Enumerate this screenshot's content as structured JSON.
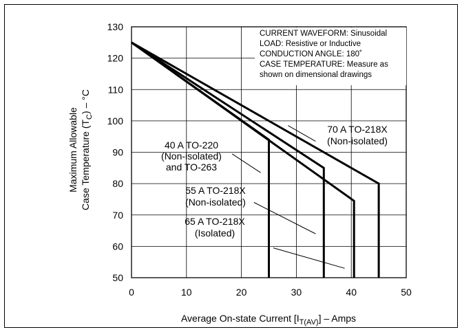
{
  "chart_data": {
    "type": "line",
    "xlabel": {
      "prefix": "Average On-state Current [I",
      "sub": "T(AV)",
      "suffix": "] – Amps"
    },
    "ylabel": {
      "line1": "Maximum Allowable",
      "line2_prefix": "Case Temperature (T",
      "line2_sub": "C",
      "line2_suffix": ") – °C"
    },
    "xlim": [
      0,
      50
    ],
    "ylim": [
      50,
      130
    ],
    "x_ticks": [
      0,
      10,
      20,
      30,
      40,
      50
    ],
    "y_ticks": [
      50,
      60,
      70,
      80,
      90,
      100,
      110,
      120,
      130
    ],
    "grid": true,
    "notes": [
      "CURRENT WAVEFORM: Sinusoidal",
      "LOAD: Resistive or Inductive",
      "CONDUCTION ANGLE: 180˚",
      "CASE TEMPERATURE: Measure as",
      "shown on dimensional drawings"
    ],
    "series": [
      {
        "name": "40 A TO-220 (Non-isolated) and TO-263",
        "points": [
          [
            0,
            125
          ],
          [
            25,
            94
          ],
          [
            25,
            50
          ]
        ]
      },
      {
        "name": "55 A TO-218X (Non-isolated)",
        "points": [
          [
            0,
            125
          ],
          [
            35,
            85
          ],
          [
            35,
            50
          ]
        ]
      },
      {
        "name": "65 A TO-218X (Isolated)",
        "points": [
          [
            0,
            125
          ],
          [
            40.5,
            74.5
          ],
          [
            40.5,
            50
          ]
        ]
      },
      {
        "name": "70 A TO-218X (Non-isolated)",
        "points": [
          [
            0,
            125
          ],
          [
            45,
            80
          ],
          [
            45,
            50
          ]
        ]
      }
    ],
    "curve_labels": [
      {
        "lines": [
          "70 A TO-218X",
          "(Non-isolated)"
        ],
        "pointer": [
          [
            33.5,
            93.5
          ],
          [
            28.5,
            98.5
          ]
        ]
      },
      {
        "lines": [
          "40 A TO-220",
          "(Non-isolated)",
          "and TO-263"
        ],
        "pointer": [
          [
            18.3,
            89.5
          ],
          [
            23.5,
            83.5
          ]
        ]
      },
      {
        "lines": [
          "55 A TO-218X",
          "(Non-isolated)"
        ],
        "pointer": [
          [
            22.3,
            74
          ],
          [
            33.5,
            64
          ]
        ]
      },
      {
        "lines": [
          "65 A TO-218X",
          "(Isolated)"
        ],
        "pointer": [
          [
            25.8,
            59.5
          ],
          [
            38.8,
            53
          ]
        ]
      }
    ]
  }
}
